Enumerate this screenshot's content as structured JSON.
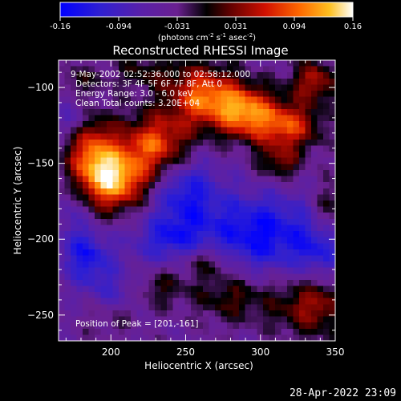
{
  "stamp": "28-Apr-2022 23:09",
  "colorbar": {
    "ticks": [
      "-0.16",
      "-0.094",
      "-0.031",
      "0.031",
      "0.094",
      "0.16"
    ],
    "unit_html": "(photons cm<tspan dy='-4' font-size='7'>-2</tspan><tspan dy='4'> s</tspan><tspan dy='-4' font-size='7'>-1</tspan><tspan dy='4'> asec</tspan><tspan dy='-4' font-size='7'>-2</tspan><tspan dy='4'>)</tspan>"
  },
  "chart_data": {
    "type": "heatmap",
    "title": "Reconstructed RHESSI Image",
    "xlabel": "Heliocentric X (arcsec)",
    "ylabel": "Heliocentric Y (arcsec)",
    "xlim": [
      165,
      350
    ],
    "ylim": [
      -267,
      -82
    ],
    "xticks": [
      200,
      250,
      300,
      350
    ],
    "yticks": [
      -100,
      -150,
      -200,
      -250
    ],
    "color_range": [
      -0.16,
      0.16
    ],
    "annotations": [
      "9-May-2002 02:52:36.000 to 02:58:12.000",
      "Detectors: 3F 4F 5F 6F 7F 8F, Att 0",
      "Energy Range: 3.0 - 6.0 keV",
      "Clean     Total counts: 3.20E+04"
    ],
    "peak_label": "Position of Peak = [201,-161]",
    "peak": [
      201,
      -161
    ],
    "blobs": [
      {
        "x": 201,
        "y": -161,
        "amp": 0.17,
        "sx": 16,
        "sy": 14
      },
      {
        "x": 187,
        "y": -140,
        "amp": 0.11,
        "sx": 12,
        "sy": 16
      },
      {
        "x": 230,
        "y": -138,
        "amp": 0.13,
        "sx": 16,
        "sy": 15
      },
      {
        "x": 262,
        "y": -106,
        "amp": 0.14,
        "sx": 16,
        "sy": 14
      },
      {
        "x": 290,
        "y": -116,
        "amp": 0.14,
        "sx": 14,
        "sy": 12
      },
      {
        "x": 318,
        "y": -126,
        "amp": 0.12,
        "sx": 15,
        "sy": 11
      },
      {
        "x": 336,
        "y": -96,
        "amp": 0.09,
        "sx": 12,
        "sy": 10
      },
      {
        "x": 312,
        "y": -150,
        "amp": 0.07,
        "sx": 10,
        "sy": 8
      },
      {
        "x": 222,
        "y": -90,
        "amp": 0.05,
        "sx": 16,
        "sy": 8
      },
      {
        "x": 178,
        "y": -96,
        "amp": 0.04,
        "sx": 10,
        "sy": 8
      },
      {
        "x": 335,
        "y": -244,
        "amp": 0.09,
        "sx": 18,
        "sy": 14
      },
      {
        "x": 280,
        "y": -238,
        "amp": 0.06,
        "sx": 18,
        "sy": 12
      },
      {
        "x": 262,
        "y": -214,
        "amp": 0.06,
        "sx": 12,
        "sy": 8
      },
      {
        "x": 232,
        "y": -232,
        "amp": 0.05,
        "sx": 12,
        "sy": 9
      },
      {
        "x": 200,
        "y": -250,
        "amp": 0.03,
        "sx": 14,
        "sy": 10
      },
      {
        "x": 345,
        "y": -180,
        "amp": 0.05,
        "sx": 8,
        "sy": 12
      },
      {
        "x": 250,
        "y": -168,
        "amp": -0.09,
        "sx": 16,
        "sy": 16
      },
      {
        "x": 300,
        "y": -196,
        "amp": -0.11,
        "sx": 26,
        "sy": 18
      },
      {
        "x": 240,
        "y": -200,
        "amp": -0.08,
        "sx": 18,
        "sy": 12
      },
      {
        "x": 184,
        "y": -212,
        "amp": -0.09,
        "sx": 12,
        "sy": 12
      },
      {
        "x": 175,
        "y": -182,
        "amp": -0.04,
        "sx": 8,
        "sy": 14
      },
      {
        "x": 202,
        "y": -235,
        "amp": -0.05,
        "sx": 14,
        "sy": 10
      },
      {
        "x": 340,
        "y": -208,
        "amp": -0.06,
        "sx": 12,
        "sy": 14
      },
      {
        "x": 175,
        "y": -120,
        "amp": -0.05,
        "sx": 8,
        "sy": 10
      }
    ],
    "background": -0.045
  }
}
